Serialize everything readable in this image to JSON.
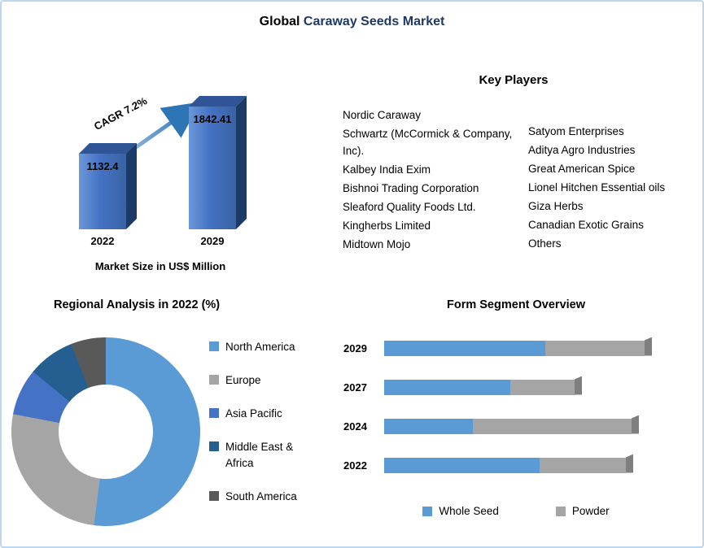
{
  "title": {
    "prefix": "Global",
    "accent": " Caraway Seeds Market"
  },
  "key_players": {
    "title": "Key Players",
    "column1": [
      "Nordic Caraway",
      "Schwartz (McCormick & Company, Inc).",
      "Kalbey India Exim",
      "Bishnoi Trading Corporation",
      "Sleaford Quality Foods Ltd.",
      "Kingherbs Limited",
      "Midtown Mojo"
    ],
    "column2": [
      "Satyom Enterprises",
      "Aditya Agro Industries",
      "Great American Spice",
      "Lionel Hitchen Essential oils",
      "Giza Herbs",
      "Canadian Exotic Grains",
      "Others"
    ]
  },
  "colors": {
    "title_accent": "#1F3864",
    "bar_front": "#4472C4",
    "bar_top": "#2F5597",
    "bar_side": "#1c3a66",
    "arrow": "#2E75B6"
  },
  "chart_data": [
    {
      "name": "market_size",
      "type": "bar",
      "categories": [
        "2022",
        "2029"
      ],
      "values": [
        1132.4,
        1842.41
      ],
      "labels": [
        "1132.4",
        "1842.41"
      ],
      "annotation": "CAGR 7.2%",
      "xlabel": "Market Size in US$ Million",
      "ylim": [
        0,
        1900
      ],
      "legend_position": "none"
    },
    {
      "name": "regional_analysis",
      "type": "pie",
      "title": "Regional Analysis in 2022 (%)",
      "labels": [
        "North America",
        "Europe",
        "Asia Pacific",
        "Middle East & Africa",
        "South America"
      ],
      "values": [
        52,
        26,
        8,
        8,
        6
      ],
      "colors": [
        "#5B9BD5",
        "#A5A5A5",
        "#4472C4",
        "#255E91",
        "#595959"
      ],
      "donut": true,
      "legend_position": "right"
    },
    {
      "name": "form_segment",
      "type": "bar",
      "orientation": "horizontal",
      "stacked": true,
      "title": "Form Segment Overview",
      "categories": [
        "2029",
        "2027",
        "2024",
        "2022"
      ],
      "series": [
        {
          "name": "Whole Seed",
          "color": "#5B9BD5",
          "values": [
            60,
            47,
            33,
            58
          ]
        },
        {
          "name": "Powder",
          "color": "#A5A5A5",
          "values": [
            37,
            24,
            59,
            32
          ]
        }
      ],
      "units": "relative-percent-estimated",
      "xlim": [
        0,
        100
      ],
      "legend_position": "bottom"
    }
  ]
}
